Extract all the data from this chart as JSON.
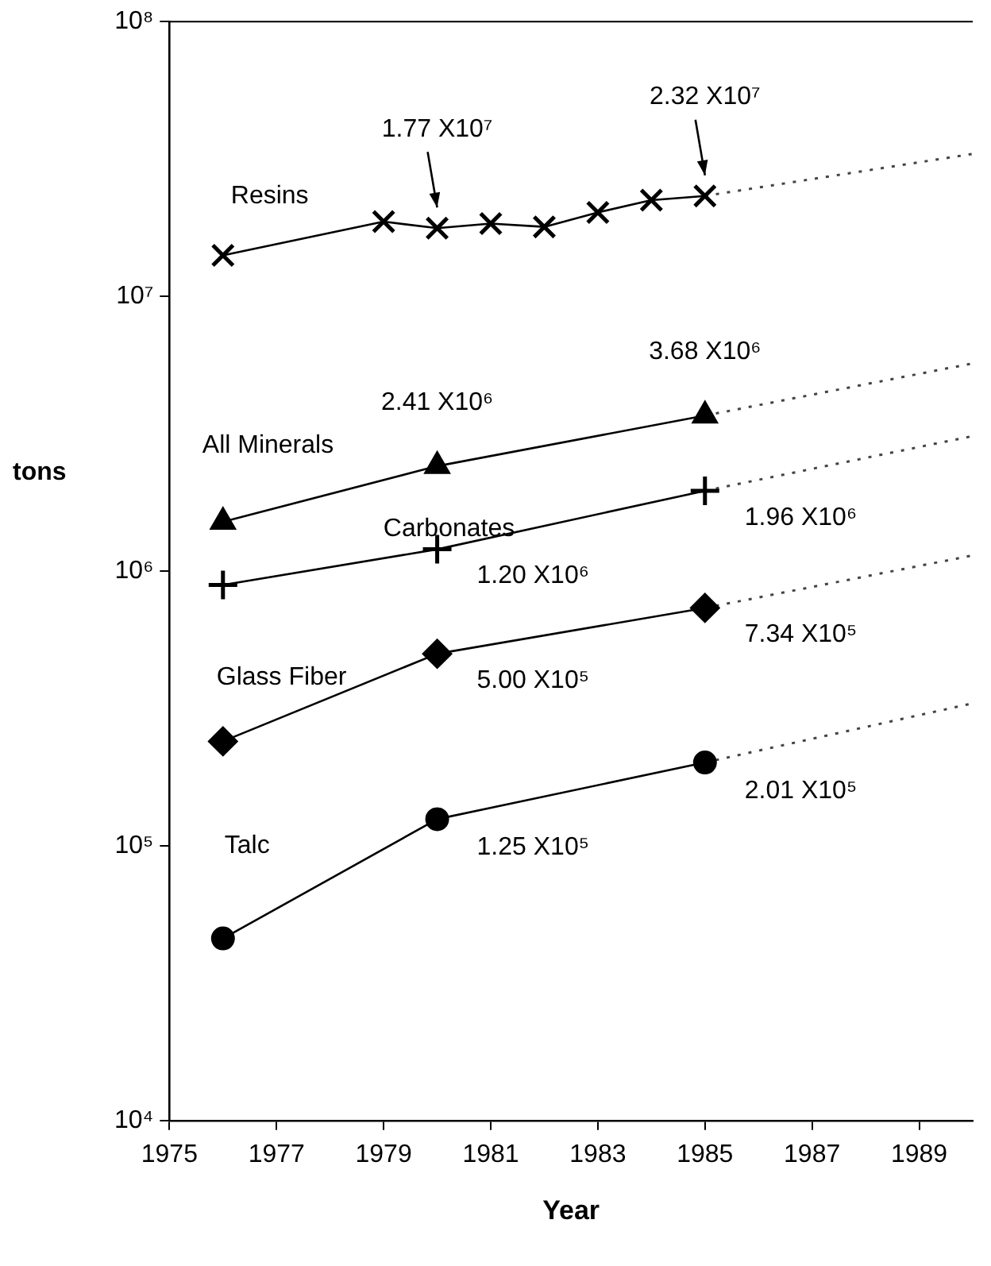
{
  "chart_data": {
    "type": "line",
    "xlabel": "Year",
    "ylabel": "tons",
    "log": "y",
    "grid": false,
    "legend": false,
    "xlim": [
      1975,
      1990
    ],
    "xticks": [
      1975,
      1977,
      1979,
      1981,
      1983,
      1985,
      1987,
      1989
    ],
    "ylim": [
      10000,
      100000000
    ],
    "yticks": [
      {
        "value": 10000,
        "label": "10⁴"
      },
      {
        "value": 100000,
        "label": "10⁵"
      },
      {
        "value": 1000000,
        "label": "10⁶"
      },
      {
        "value": 10000000,
        "label": "10⁷"
      },
      {
        "value": 100000000,
        "label": "10⁸"
      }
    ],
    "series": [
      {
        "name": "Resins",
        "color": "#000000",
        "marker": "x",
        "line_style": "solid",
        "x": [
          1976,
          1979,
          1980,
          1981,
          1982,
          1983,
          1984,
          1985
        ],
        "values": [
          14100000,
          18700000,
          17700000,
          18400000,
          17900000,
          20200000,
          22400000,
          23200000
        ]
      },
      {
        "name": "All Minerals",
        "color": "#000000",
        "marker": "triangle",
        "line_style": "solid",
        "x": [
          1976,
          1980,
          1985
        ],
        "values": [
          1510000,
          2410000,
          3680000
        ]
      },
      {
        "name": "Carbonates",
        "color": "#000000",
        "marker": "cross",
        "line_style": "solid",
        "x": [
          1976,
          1980,
          1985
        ],
        "values": [
          890000,
          1200000,
          1960000
        ]
      },
      {
        "name": "Glass Fiber",
        "color": "#000000",
        "marker": "diamond",
        "line_style": "solid",
        "x": [
          1976,
          1980,
          1985
        ],
        "values": [
          240000,
          500000,
          734000
        ]
      },
      {
        "name": "Talc",
        "color": "#000000",
        "marker": "circle",
        "line_style": "solid",
        "x": [
          1976,
          1980,
          1985
        ],
        "values": [
          46000,
          125000,
          201000
        ]
      },
      {
        "color": "#444444",
        "marker": "none",
        "line_style": "dotted",
        "x": [
          1985,
          1990
        ],
        "values": [
          23200000,
          33000000
        ]
      },
      {
        "color": "#444444",
        "marker": "none",
        "line_style": "dotted",
        "x": [
          1985,
          1990
        ],
        "values": [
          3680000,
          5700000
        ]
      },
      {
        "color": "#444444",
        "marker": "none",
        "line_style": "dotted",
        "x": [
          1985,
          1990
        ],
        "values": [
          1960000,
          3100000
        ]
      },
      {
        "color": "#444444",
        "marker": "none",
        "line_style": "dotted",
        "x": [
          1985,
          1990
        ],
        "values": [
          734000,
          1140000
        ]
      },
      {
        "color": "#444444",
        "marker": "none",
        "line_style": "dotted",
        "x": [
          1985,
          1990
        ],
        "values": [
          201000,
          330000
        ]
      }
    ],
    "annotations": [
      "1.77 X10⁷",
      "2.32 X10⁷",
      "2.41 X10⁶",
      "3.68 X10⁶",
      "1.20 X10⁶",
      "1.96 X10⁶",
      "5.00 X10⁵",
      "7.34 X10⁵",
      "1.25 X10⁵",
      "2.01 X10⁵"
    ]
  }
}
